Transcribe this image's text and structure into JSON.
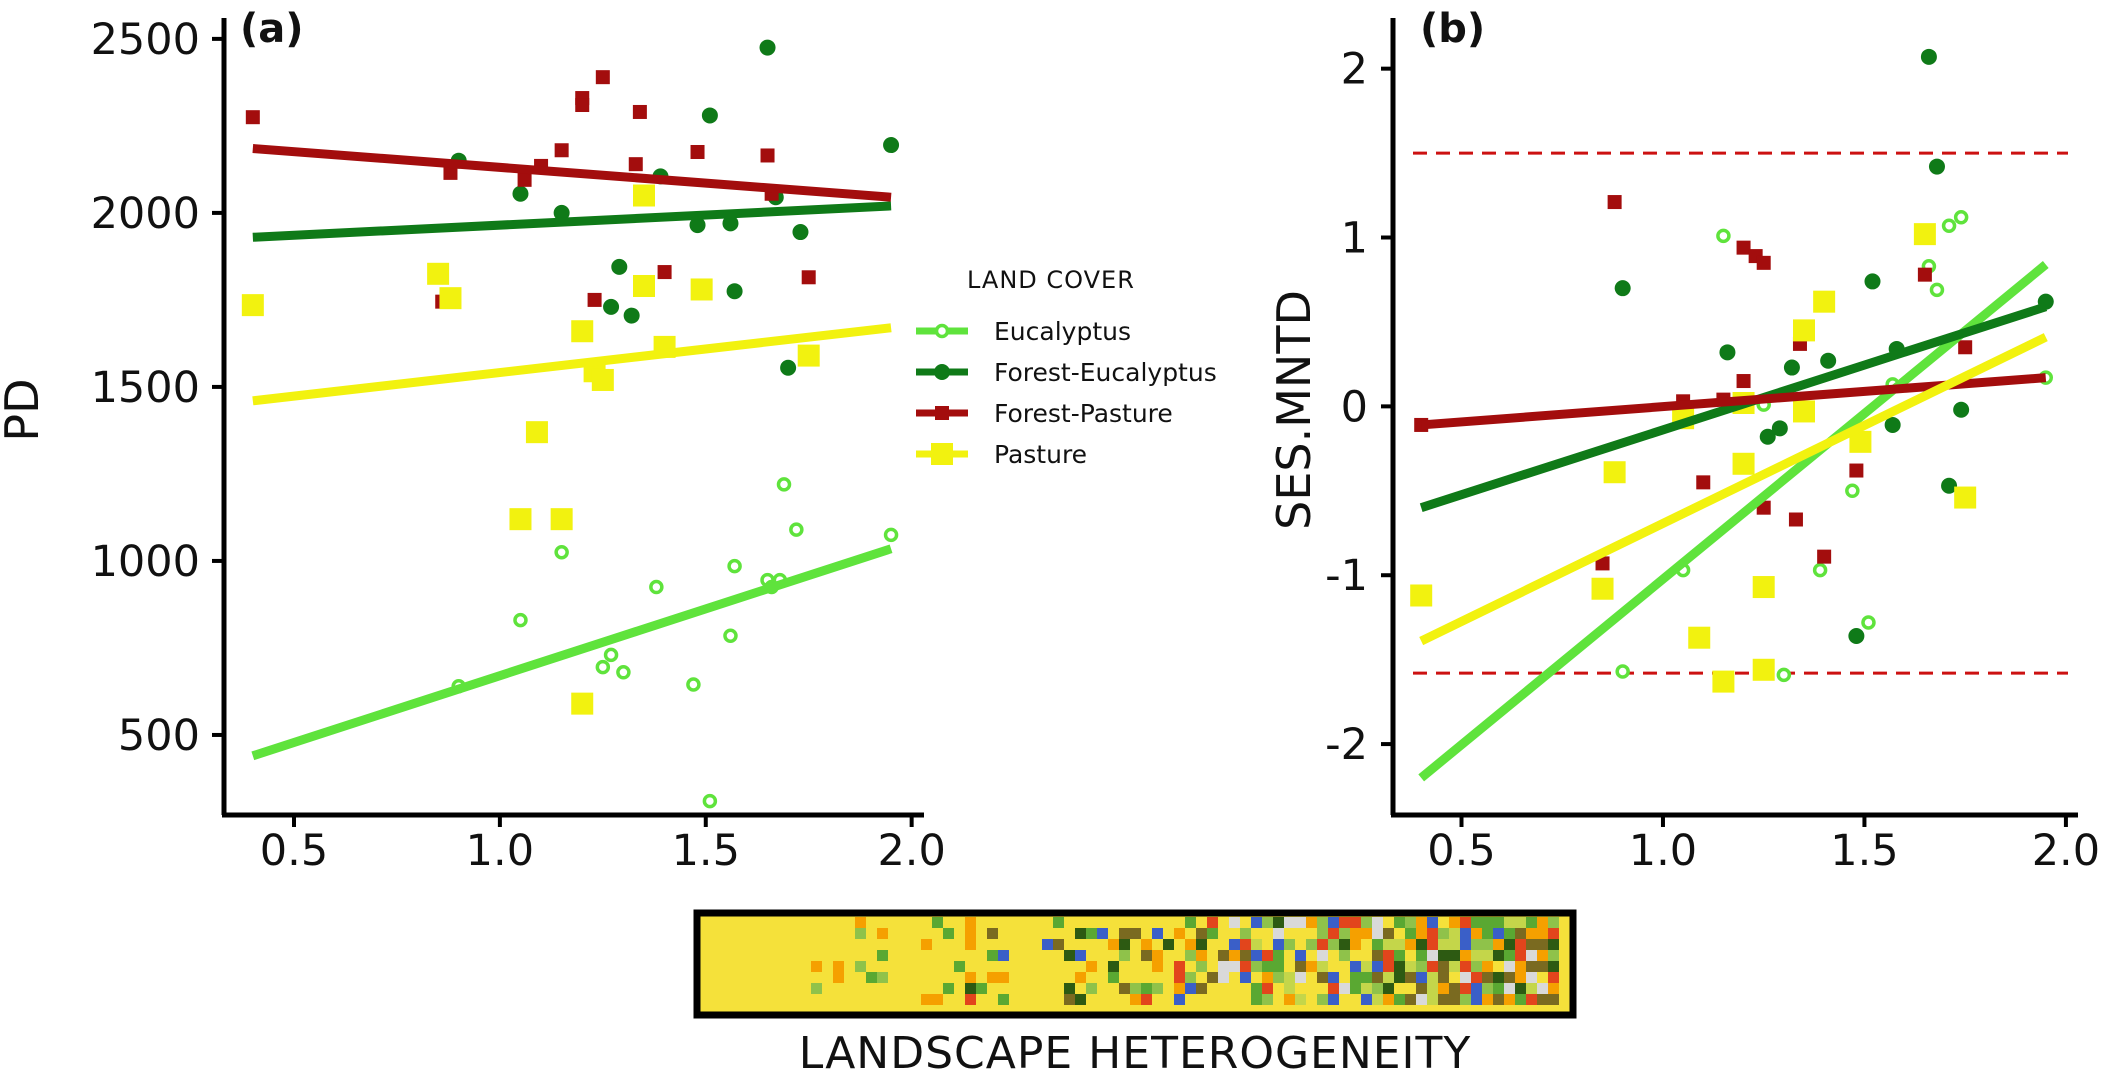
{
  "colors": {
    "eucalyptus": "#5fe33c",
    "forest_eucalyptus": "#0f7a18",
    "forest_pasture": "#a30d0d",
    "pasture": "#f2f20f",
    "threshold": "#cc1111"
  },
  "legend": {
    "title": "LAND COVER",
    "items": [
      {
        "key": "eucalyptus",
        "label": "Eucalyptus",
        "marker": "open-circle"
      },
      {
        "key": "forest_eucalyptus",
        "label": "Forest-Eucalyptus",
        "marker": "circle"
      },
      {
        "key": "forest_pasture",
        "label": "Forest-Pasture",
        "marker": "small-square"
      },
      {
        "key": "pasture",
        "label": "Pasture",
        "marker": "square"
      }
    ]
  },
  "landscape_strip": {
    "label": "LANDSCAPE HETEROGENEITY"
  },
  "chart_data": [
    {
      "panel_label": "(a)",
      "type": "scatter",
      "xlabel": "",
      "ylabel": "PD",
      "xlim": [
        0.33,
        2.03
      ],
      "ylim": [
        270,
        2560
      ],
      "xticks": [
        0.5,
        1.0,
        1.5,
        2.0
      ],
      "xtick_labels": [
        "0.5",
        "1.0",
        "1.5",
        "2.0"
      ],
      "yticks": [
        500,
        1000,
        1500,
        2000,
        2500
      ],
      "ytick_labels": [
        "500",
        "1000",
        "1500",
        "2000",
        "2500"
      ],
      "series": [
        {
          "key": "eucalyptus",
          "name": "Eucalyptus",
          "points": [
            [
              0.9,
              640
            ],
            [
              1.05,
              830
            ],
            [
              1.15,
              1025
            ],
            [
              1.25,
              695
            ],
            [
              1.27,
              730
            ],
            [
              1.3,
              680
            ],
            [
              1.38,
              925
            ],
            [
              1.47,
              645
            ],
            [
              1.51,
              310
            ],
            [
              1.56,
              785
            ],
            [
              1.57,
              985
            ],
            [
              1.65,
              945
            ],
            [
              1.66,
              925
            ],
            [
              1.68,
              945
            ],
            [
              1.69,
              1220
            ],
            [
              1.72,
              1090
            ],
            [
              1.95,
              1075
            ]
          ],
          "fit": [
            [
              0.4,
              440
            ],
            [
              1.95,
              1035
            ]
          ]
        },
        {
          "key": "forest_eucalyptus",
          "name": "Forest-Eucalyptus",
          "points": [
            [
              0.9,
              2150
            ],
            [
              1.05,
              2055
            ],
            [
              1.15,
              2000
            ],
            [
              1.27,
              1730
            ],
            [
              1.29,
              1845
            ],
            [
              1.32,
              1705
            ],
            [
              1.39,
              2105
            ],
            [
              1.48,
              1965
            ],
            [
              1.51,
              2280
            ],
            [
              1.56,
              1970
            ],
            [
              1.57,
              1775
            ],
            [
              1.65,
              2475
            ],
            [
              1.67,
              2045
            ],
            [
              1.7,
              1555
            ],
            [
              1.73,
              1945
            ],
            [
              1.95,
              2195
            ]
          ],
          "fit": [
            [
              0.4,
              1930
            ],
            [
              1.95,
              2020
            ]
          ]
        },
        {
          "key": "forest_pasture",
          "name": "Forest-Pasture",
          "points": [
            [
              0.4,
              2275
            ],
            [
              0.86,
              1745
            ],
            [
              0.88,
              2115
            ],
            [
              1.06,
              2095
            ],
            [
              1.1,
              2135
            ],
            [
              1.15,
              2180
            ],
            [
              1.2,
              2330
            ],
            [
              1.2,
              2310
            ],
            [
              1.23,
              1750
            ],
            [
              1.25,
              2390
            ],
            [
              1.33,
              2140
            ],
            [
              1.34,
              2290
            ],
            [
              1.4,
              1830
            ],
            [
              1.48,
              2175
            ],
            [
              1.65,
              2165
            ],
            [
              1.66,
              2055
            ],
            [
              1.75,
              1815
            ]
          ],
          "fit": [
            [
              0.4,
              2185
            ],
            [
              1.95,
              2045
            ]
          ]
        },
        {
          "key": "pasture",
          "name": "Pasture",
          "points": [
            [
              0.4,
              1735
            ],
            [
              0.85,
              1825
            ],
            [
              0.88,
              1755
            ],
            [
              1.05,
              1120
            ],
            [
              1.09,
              1370
            ],
            [
              1.15,
              1120
            ],
            [
              1.2,
              1660
            ],
            [
              1.2,
              590
            ],
            [
              1.23,
              1545
            ],
            [
              1.25,
              1520
            ],
            [
              1.35,
              1790
            ],
            [
              1.35,
              2050
            ],
            [
              1.4,
              1615
            ],
            [
              1.49,
              1780
            ],
            [
              1.75,
              1590
            ]
          ],
          "fit": [
            [
              0.4,
              1460
            ],
            [
              1.95,
              1670
            ]
          ]
        }
      ]
    },
    {
      "panel_label": "(b)",
      "type": "scatter",
      "xlabel": "",
      "ylabel": "SES.MNTD",
      "xlim": [
        0.33,
        2.03
      ],
      "ylim": [
        -2.42,
        2.3
      ],
      "xticks": [
        0.5,
        1.0,
        1.5,
        2.0
      ],
      "xtick_labels": [
        "0.5",
        "1.0",
        "1.5",
        "2.0"
      ],
      "yticks": [
        -2,
        -1,
        0,
        1,
        2
      ],
      "ytick_labels": [
        "-2",
        "-1",
        "0",
        "1",
        "2"
      ],
      "reference_lines": [
        1.5,
        -1.58
      ],
      "series": [
        {
          "key": "eucalyptus",
          "name": "Eucalyptus",
          "points": [
            [
              0.9,
              -1.57
            ],
            [
              1.05,
              -0.97
            ],
            [
              1.15,
              1.01
            ],
            [
              1.25,
              0.01
            ],
            [
              1.3,
              -1.59
            ],
            [
              1.39,
              -0.97
            ],
            [
              1.47,
              -0.5
            ],
            [
              1.51,
              -1.28
            ],
            [
              1.57,
              0.13
            ],
            [
              1.66,
              0.83
            ],
            [
              1.68,
              0.69
            ],
            [
              1.71,
              1.07
            ],
            [
              1.74,
              1.12
            ],
            [
              1.95,
              0.17
            ]
          ],
          "fit": [
            [
              0.4,
              -2.2
            ],
            [
              1.95,
              0.84
            ]
          ]
        },
        {
          "key": "forest_eucalyptus",
          "name": "Forest-Eucalyptus",
          "points": [
            [
              0.9,
              0.7
            ],
            [
              1.16,
              0.32
            ],
            [
              1.26,
              -0.18
            ],
            [
              1.29,
              -0.13
            ],
            [
              1.32,
              0.23
            ],
            [
              1.41,
              0.27
            ],
            [
              1.48,
              -1.36
            ],
            [
              1.52,
              0.74
            ],
            [
              1.57,
              -0.11
            ],
            [
              1.58,
              0.34
            ],
            [
              1.66,
              2.07
            ],
            [
              1.68,
              1.42
            ],
            [
              1.71,
              -0.47
            ],
            [
              1.74,
              -0.02
            ],
            [
              1.95,
              0.62
            ]
          ],
          "fit": [
            [
              0.4,
              -0.6
            ],
            [
              1.95,
              0.59
            ]
          ]
        },
        {
          "key": "forest_pasture",
          "name": "Forest-Pasture",
          "points": [
            [
              0.4,
              -0.11
            ],
            [
              0.85,
              -0.93
            ],
            [
              0.88,
              1.21
            ],
            [
              1.05,
              0.03
            ],
            [
              1.1,
              -0.45
            ],
            [
              1.15,
              0.04
            ],
            [
              1.2,
              0.94
            ],
            [
              1.2,
              0.15
            ],
            [
              1.23,
              0.89
            ],
            [
              1.25,
              0.85
            ],
            [
              1.25,
              -0.6
            ],
            [
              1.33,
              -0.67
            ],
            [
              1.34,
              0.37
            ],
            [
              1.4,
              -0.89
            ],
            [
              1.48,
              -0.38
            ],
            [
              1.65,
              0.78
            ],
            [
              1.75,
              0.35
            ]
          ],
          "fit": [
            [
              0.4,
              -0.11
            ],
            [
              1.95,
              0.17
            ]
          ]
        },
        {
          "key": "pasture",
          "name": "Pasture",
          "points": [
            [
              0.4,
              -1.12
            ],
            [
              0.85,
              -1.08
            ],
            [
              0.88,
              -0.39
            ],
            [
              1.05,
              -0.07
            ],
            [
              1.09,
              -1.37
            ],
            [
              1.15,
              -1.63
            ],
            [
              1.2,
              -0.34
            ],
            [
              1.2,
              0.02
            ],
            [
              1.25,
              -1.07
            ],
            [
              1.25,
              -1.56
            ],
            [
              1.35,
              0.45
            ],
            [
              1.35,
              -0.03
            ],
            [
              1.4,
              0.62
            ],
            [
              1.49,
              -0.21
            ],
            [
              1.65,
              1.02
            ],
            [
              1.75,
              -0.54
            ]
          ],
          "fit": [
            [
              0.4,
              -1.39
            ],
            [
              1.95,
              0.41
            ]
          ]
        }
      ]
    }
  ]
}
